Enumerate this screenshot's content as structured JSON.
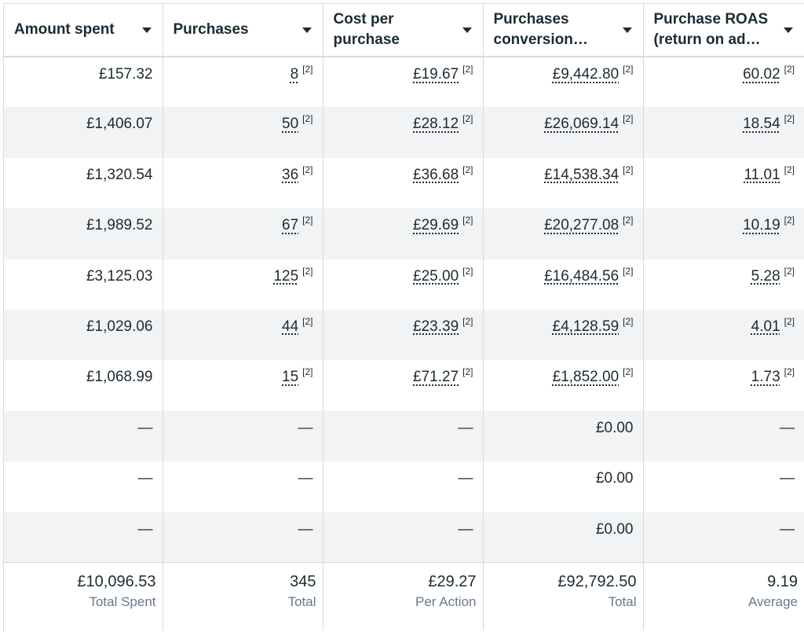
{
  "columns": [
    {
      "label": "Amount spent"
    },
    {
      "label": "Purchases"
    },
    {
      "label": "Cost per purchase"
    },
    {
      "label": "Purchases conversion…"
    },
    {
      "label": "Purchase ROAS (return on ad…"
    }
  ],
  "rows": [
    [
      "£157.32",
      "8",
      "£19.67",
      "£9,442.80",
      "60.02"
    ],
    [
      "£1,406.07",
      "50",
      "£28.12",
      "£26,069.14",
      "18.54"
    ],
    [
      "£1,320.54",
      "36",
      "£36.68",
      "£14,538.34",
      "11.01"
    ],
    [
      "£1,989.52",
      "67",
      "£29.69",
      "£20,277.08",
      "10.19"
    ],
    [
      "£3,125.03",
      "125",
      "£25.00",
      "£16,484.56",
      "5.28"
    ],
    [
      "£1,029.06",
      "44",
      "£23.39",
      "£4,128.59",
      "4.01"
    ],
    [
      "£1,068.99",
      "15",
      "£71.27",
      "£1,852.00",
      "1.73"
    ],
    [
      "—",
      "—",
      "—",
      "£0.00",
      "—"
    ],
    [
      "—",
      "—",
      "—",
      "£0.00",
      "—"
    ],
    [
      "—",
      "—",
      "—",
      "£0.00",
      "—"
    ]
  ],
  "footnote_marker": "[2]",
  "totals": [
    {
      "value": "£10,096.53",
      "label": "Total Spent"
    },
    {
      "value": "345",
      "label": "Total"
    },
    {
      "value": "£29.27",
      "label": "Per Action"
    },
    {
      "value": "£92,792.50",
      "label": "Total"
    },
    {
      "value": "9.19",
      "label": "Average"
    }
  ],
  "colors": {
    "text": "#1c2b33",
    "muted": "#67788a",
    "row_alt": "#f2f3f5",
    "border": "#d6d9dd"
  },
  "icons": {
    "sort": "caret-down-icon"
  }
}
